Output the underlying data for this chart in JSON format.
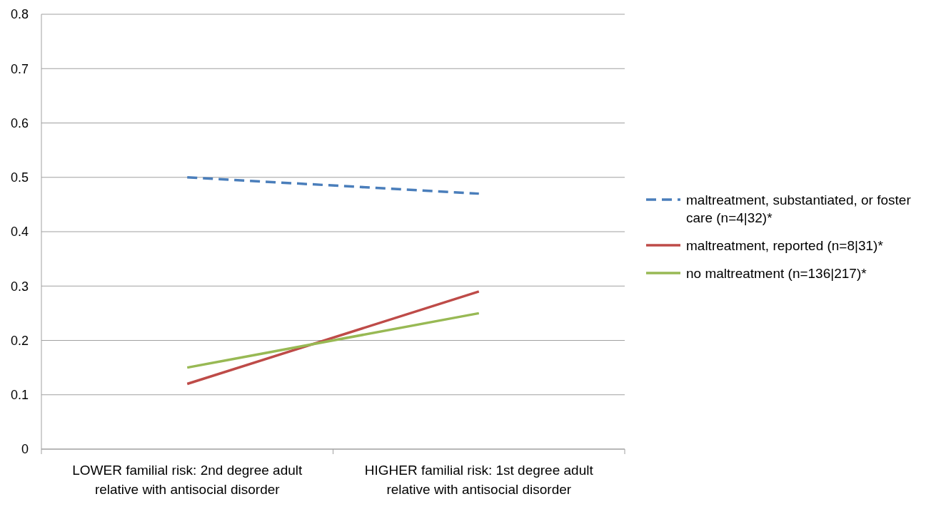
{
  "chart_data": {
    "type": "line",
    "categories": [
      "LOWER familial risk: 2nd degree adult relative with antisocial disorder",
      "HIGHER familial risk: 1st degree adult relative with antisocial disorder"
    ],
    "series": [
      {
        "name": "maltreatment, substantiated, or foster care (n=4|32)*",
        "color": "#4a7ebb",
        "values": [
          0.5,
          0.47
        ],
        "line_style": "dashed"
      },
      {
        "name": "maltreatment, reported (n=8|31)*",
        "color": "#be4b48",
        "values": [
          0.12,
          0.29
        ],
        "line_style": "solid"
      },
      {
        "name": "no maltreatment (n=136|217)*",
        "color": "#98b954",
        "values": [
          0.15,
          0.25
        ],
        "line_style": "solid"
      }
    ],
    "ylim": [
      0,
      0.8
    ],
    "yticks": [
      0,
      0.1,
      0.2,
      0.3,
      0.4,
      0.5,
      0.6,
      0.7,
      0.8
    ],
    "grid": "y",
    "legend": "right",
    "marker": "none"
  }
}
